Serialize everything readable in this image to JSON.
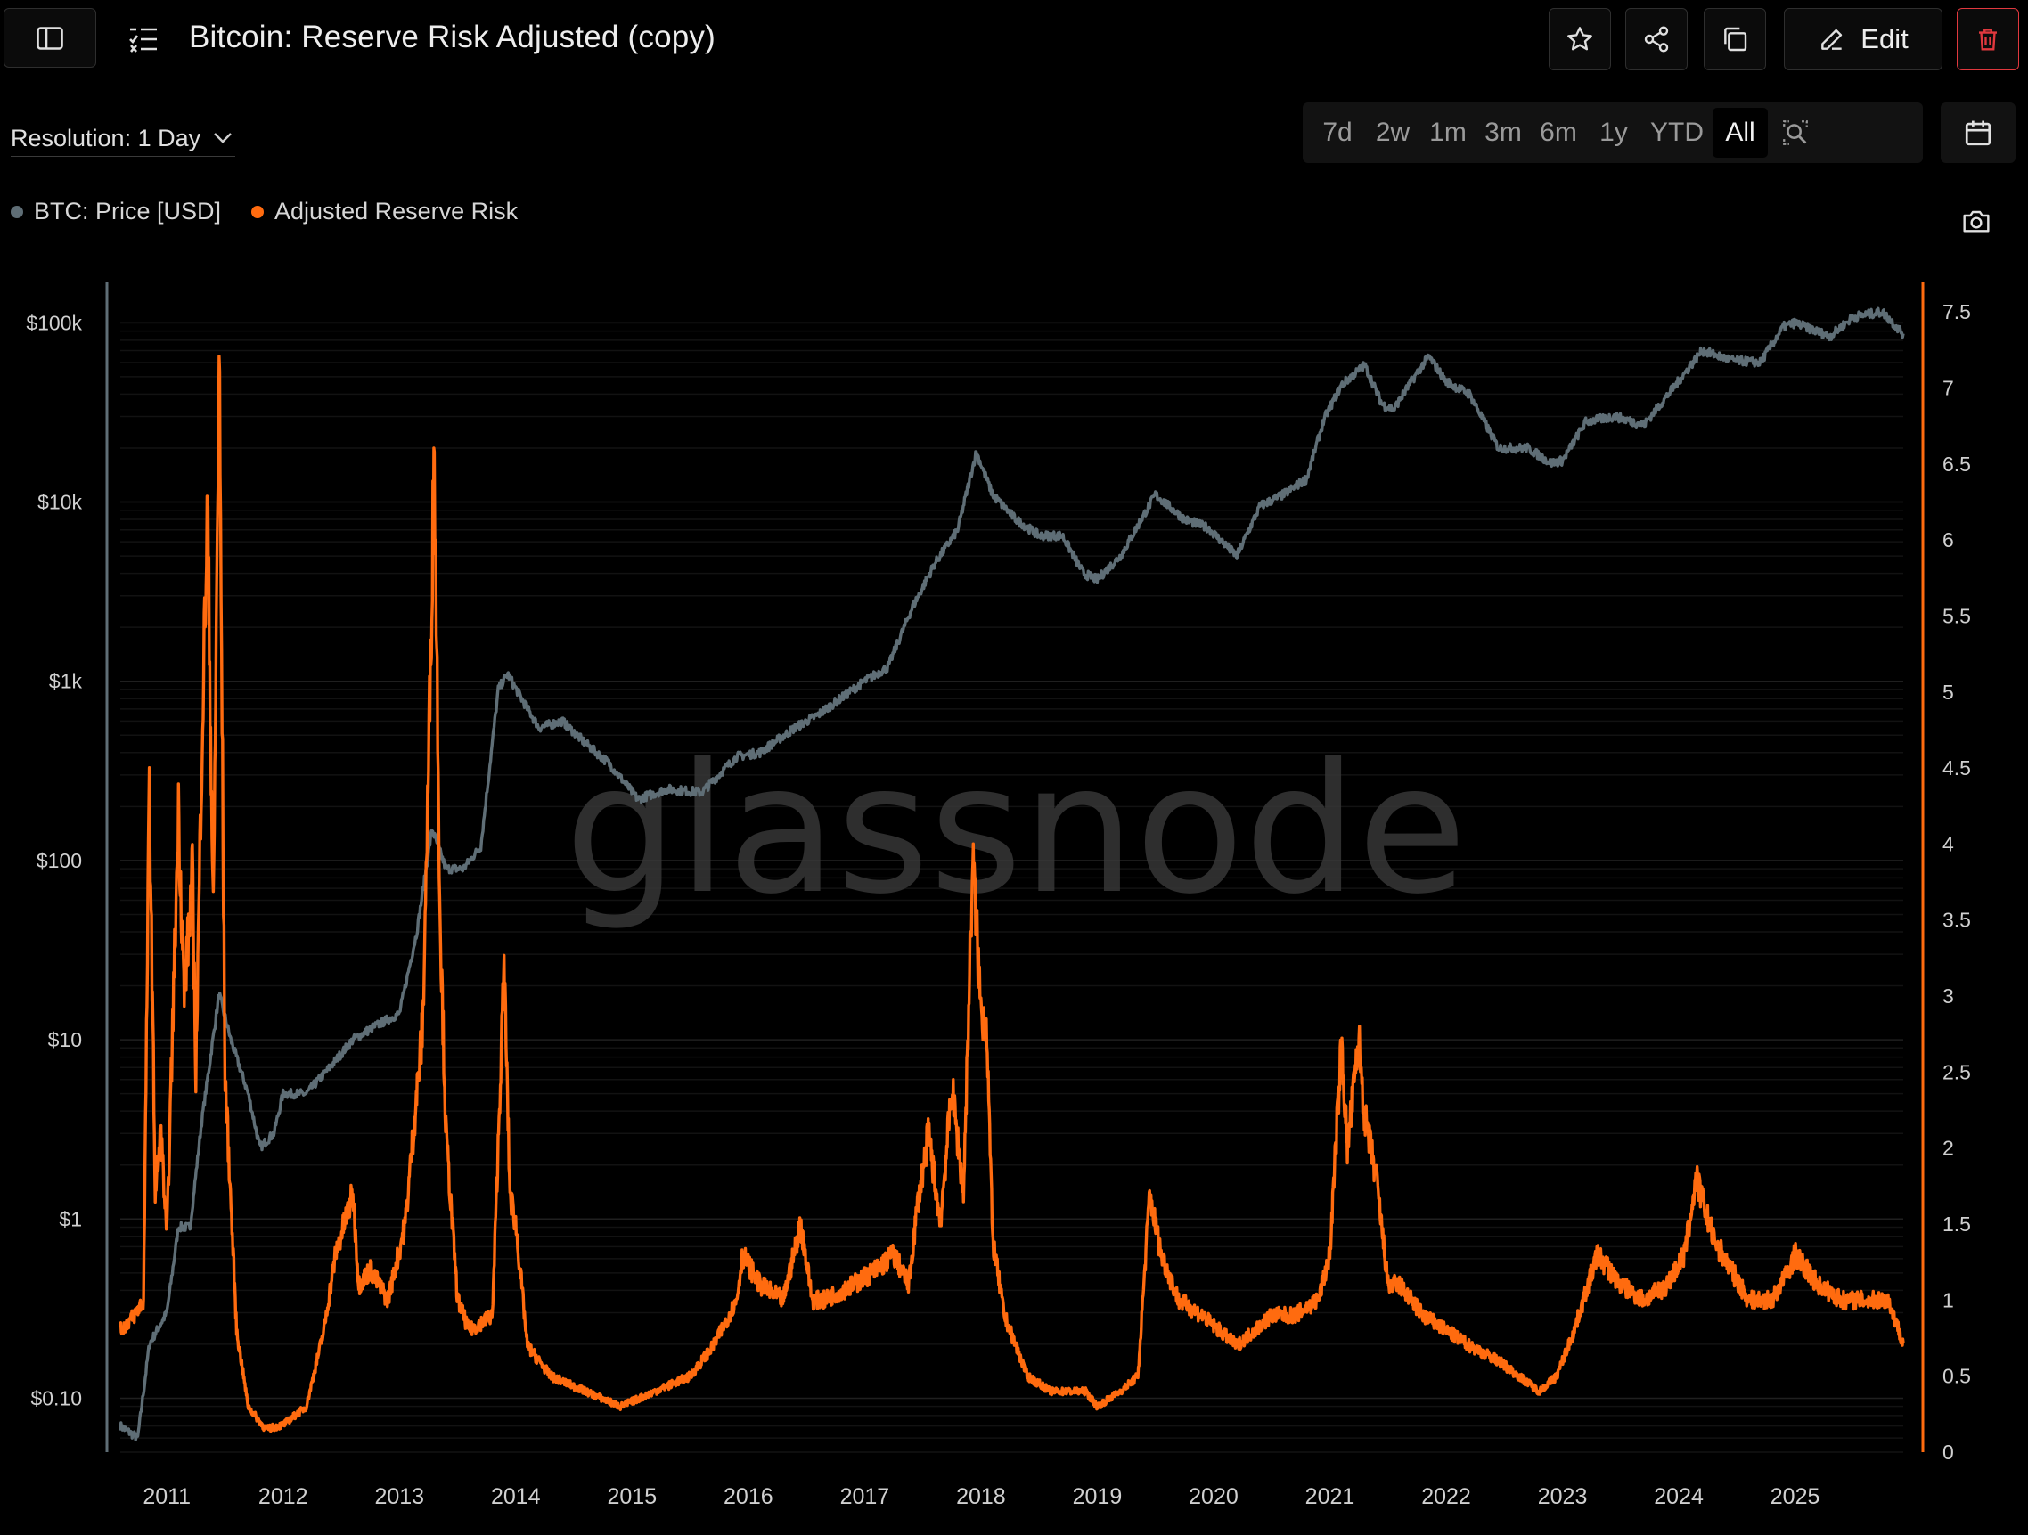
{
  "header": {
    "title": "Bitcoin: Reserve Risk Adjusted (copy)",
    "edit_label": "Edit",
    "icons": [
      "sidebar-toggle-icon",
      "checklist-icon",
      "star-icon",
      "share-icon",
      "copy-icon",
      "pencil-icon",
      "trash-icon"
    ]
  },
  "toolbar": {
    "resolution_label": "Resolution: 1 Day",
    "ranges": [
      "7d",
      "2w",
      "1m",
      "3m",
      "6m",
      "1y",
      "YTD",
      "All"
    ],
    "active_range": "All",
    "icons": [
      "zoom-search-icon",
      "calendar-icon",
      "camera-icon"
    ]
  },
  "colors": {
    "background": "#000000",
    "price": "#5f6e76",
    "risk": "#ff6b0f",
    "delete_accent": "#e0383e",
    "watermark": "#3a3a3a"
  },
  "watermark": "glassnode",
  "chart_data": {
    "type": "line",
    "legend_placement": "top-left",
    "grid": true,
    "x_ticks": [
      "2011",
      "2012",
      "2013",
      "2014",
      "2015",
      "2016",
      "2017",
      "2018",
      "2019",
      "2020",
      "2021",
      "2022",
      "2023",
      "2024",
      "2025"
    ],
    "x_range": [
      2010.6,
      2025.93
    ],
    "y_left": {
      "scale": "log",
      "range": [
        0.05,
        170000
      ],
      "ticks": [
        0.1,
        1,
        10,
        100,
        1000,
        10000,
        100000
      ],
      "tick_labels": [
        "$0.10",
        "$1",
        "$10",
        "$100",
        "$1k",
        "$10k",
        "$100k"
      ]
    },
    "y_right": {
      "scale": "linear",
      "range": [
        0,
        7.7
      ],
      "ticks": [
        0,
        0.5,
        1,
        1.5,
        2,
        2.5,
        3,
        3.5,
        4,
        4.5,
        5,
        5.5,
        6,
        6.5,
        7,
        7.5
      ],
      "tick_labels": [
        "0",
        "0.5",
        "1",
        "1.5",
        "2",
        "2.5",
        "3",
        "3.5",
        "4",
        "4.5",
        "5",
        "5.5",
        "6",
        "6.5",
        "7",
        "7.5"
      ]
    },
    "series": [
      {
        "name": "BTC: Price [USD]",
        "axis": "left",
        "color": "#5f6e76",
        "x": [
          2010.6,
          2010.75,
          2010.85,
          2011.0,
          2011.1,
          2011.2,
          2011.3,
          2011.45,
          2011.55,
          2011.7,
          2011.8,
          2011.92,
          2012.0,
          2012.2,
          2012.4,
          2012.6,
          2012.8,
          2013.0,
          2013.15,
          2013.28,
          2013.4,
          2013.55,
          2013.7,
          2013.85,
          2013.93,
          2014.05,
          2014.2,
          2014.4,
          2014.6,
          2014.8,
          2015.05,
          2015.3,
          2015.6,
          2015.9,
          2016.1,
          2016.4,
          2016.6,
          2016.9,
          2017.0,
          2017.2,
          2017.4,
          2017.6,
          2017.8,
          2017.96,
          2018.1,
          2018.3,
          2018.5,
          2018.7,
          2018.88,
          2019.0,
          2019.2,
          2019.5,
          2019.75,
          2019.95,
          2020.2,
          2020.4,
          2020.6,
          2020.8,
          2020.95,
          2021.1,
          2021.3,
          2021.45,
          2021.55,
          2021.7,
          2021.85,
          2022.0,
          2022.2,
          2022.45,
          2022.7,
          2022.9,
          2023.0,
          2023.2,
          2023.45,
          2023.7,
          2023.95,
          2024.2,
          2024.45,
          2024.7,
          2024.9,
          2025.0,
          2025.3,
          2025.5,
          2025.75,
          2025.93
        ],
        "values": [
          0.07,
          0.06,
          0.2,
          0.3,
          0.9,
          0.9,
          3.5,
          18,
          10,
          5,
          2.5,
          3,
          5,
          5,
          7,
          10,
          12,
          14,
          40,
          150,
          90,
          90,
          120,
          900,
          1100,
          800,
          550,
          600,
          450,
          350,
          220,
          250,
          240,
          380,
          400,
          550,
          650,
          900,
          1000,
          1200,
          2500,
          4500,
          7000,
          19000,
          11000,
          8000,
          6500,
          6500,
          4000,
          3700,
          5000,
          11000,
          8000,
          7200,
          5000,
          9500,
          11000,
          13500,
          29000,
          45000,
          58000,
          35000,
          33000,
          47000,
          65000,
          47000,
          40000,
          20000,
          20000,
          16500,
          17000,
          28000,
          30000,
          27000,
          43000,
          70000,
          62000,
          60000,
          95000,
          100000,
          84000,
          108000,
          115000,
          87000
        ]
      },
      {
        "name": "Adjusted Reserve Risk",
        "axis": "right",
        "color": "#ff6b0f",
        "x": [
          2010.6,
          2010.72,
          2010.8,
          2010.85,
          2010.9,
          2010.95,
          2011.0,
          2011.05,
          2011.1,
          2011.15,
          2011.22,
          2011.25,
          2011.3,
          2011.35,
          2011.4,
          2011.45,
          2011.5,
          2011.6,
          2011.7,
          2011.85,
          2012.0,
          2012.2,
          2012.35,
          2012.45,
          2012.6,
          2012.65,
          2012.75,
          2012.9,
          2013.05,
          2013.2,
          2013.25,
          2013.3,
          2013.35,
          2013.4,
          2013.5,
          2013.6,
          2013.8,
          2013.9,
          2013.95,
          2014.0,
          2014.1,
          2014.3,
          2014.6,
          2014.9,
          2015.2,
          2015.5,
          2015.7,
          2015.9,
          2015.95,
          2016.1,
          2016.3,
          2016.45,
          2016.55,
          2016.65,
          2016.9,
          2017.1,
          2017.25,
          2017.38,
          2017.45,
          2017.55,
          2017.65,
          2017.75,
          2017.85,
          2017.93,
          2018.0,
          2018.05,
          2018.1,
          2018.2,
          2018.4,
          2018.6,
          2018.9,
          2019.0,
          2019.2,
          2019.35,
          2019.45,
          2019.55,
          2019.7,
          2019.9,
          2020.2,
          2020.5,
          2020.7,
          2020.9,
          2021.0,
          2021.1,
          2021.15,
          2021.25,
          2021.3,
          2021.4,
          2021.5,
          2021.6,
          2021.8,
          2022.0,
          2022.2,
          2022.45,
          2022.8,
          2022.95,
          2023.1,
          2023.3,
          2023.5,
          2023.7,
          2023.9,
          2024.05,
          2024.15,
          2024.3,
          2024.45,
          2024.6,
          2024.8,
          2024.95,
          2025.0,
          2025.2,
          2025.4,
          2025.6,
          2025.8,
          2025.93
        ],
        "values": [
          0.8,
          0.9,
          1.0,
          4.4,
          1.7,
          2.1,
          1.4,
          2.8,
          4.2,
          3.0,
          3.8,
          2.5,
          4.6,
          6.2,
          3.5,
          7.2,
          2.5,
          0.8,
          0.3,
          0.15,
          0.18,
          0.3,
          0.8,
          1.3,
          1.7,
          1.1,
          1.2,
          1.0,
          1.5,
          2.8,
          4.5,
          6.6,
          3.5,
          2.1,
          1.0,
          0.8,
          0.9,
          3.2,
          1.7,
          1.5,
          0.7,
          0.5,
          0.4,
          0.3,
          0.4,
          0.5,
          0.7,
          1.0,
          1.3,
          1.1,
          1.0,
          1.5,
          1.0,
          1.0,
          1.1,
          1.2,
          1.3,
          1.1,
          1.6,
          2.1,
          1.5,
          2.4,
          1.7,
          3.9,
          2.9,
          2.8,
          1.4,
          0.9,
          0.5,
          0.4,
          0.4,
          0.3,
          0.4,
          0.5,
          1.7,
          1.3,
          1.0,
          0.9,
          0.7,
          0.9,
          0.9,
          1.0,
          1.3,
          2.7,
          2.0,
          2.7,
          2.2,
          1.8,
          1.1,
          1.1,
          0.9,
          0.8,
          0.7,
          0.6,
          0.4,
          0.5,
          0.8,
          1.3,
          1.1,
          1.0,
          1.1,
          1.3,
          1.8,
          1.4,
          1.2,
          1.0,
          1.0,
          1.2,
          1.3,
          1.1,
          1.0,
          1.0,
          1.0,
          0.72
        ]
      }
    ]
  }
}
